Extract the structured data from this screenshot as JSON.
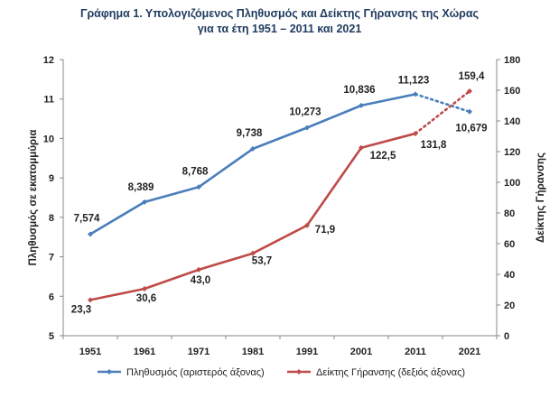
{
  "chart_data": {
    "type": "line",
    "title": "Γράφημα 1. Υπολογιζόμενος Πληθυσμός και Δείκτης Γήρανσης της Χώρας",
    "subtitle": "για τα έτη 1951 – 2011 και 2021",
    "categories": [
      "1951",
      "1961",
      "1971",
      "1981",
      "1991",
      "2001",
      "2011",
      "2021"
    ],
    "ylabel_left": "Πληθυσμός σε εκατομμύρια",
    "ylabel_right": "Δείκτης Γήρανσης",
    "ylim_left": [
      5,
      12
    ],
    "yticks_left": [
      "5",
      "6",
      "7",
      "8",
      "9",
      "10",
      "11",
      "12"
    ],
    "ylim_right": [
      0,
      180
    ],
    "yticks_right": [
      "0",
      "20",
      "40",
      "60",
      "80",
      "100",
      "120",
      "140",
      "160",
      "180"
    ],
    "grid": false,
    "legend_position": "bottom",
    "series": [
      {
        "name": "Πληθυσμός (αριστερός άξονας)",
        "axis": "left",
        "color": "#4a7ebb",
        "values": [
          7.574,
          8.389,
          8.768,
          9.738,
          10.273,
          10.836,
          11.123,
          10.679
        ],
        "labels": [
          "7,574",
          "8,389",
          "8,768",
          "9,738",
          "10,273",
          "10,836",
          "11,123",
          "10,679"
        ],
        "dashed_last_segment": true
      },
      {
        "name": "Δείκτης Γήρανσης (δεξιός άξονας)",
        "axis": "right",
        "color": "#be4b48",
        "values": [
          23.3,
          30.6,
          43.0,
          53.7,
          71.9,
          122.5,
          131.8,
          159.4
        ],
        "labels": [
          "23,3",
          "30,6",
          "43,0",
          "53,7",
          "71,9",
          "122,5",
          "131,8",
          "159,4"
        ],
        "dashed_last_segment": true
      }
    ]
  }
}
